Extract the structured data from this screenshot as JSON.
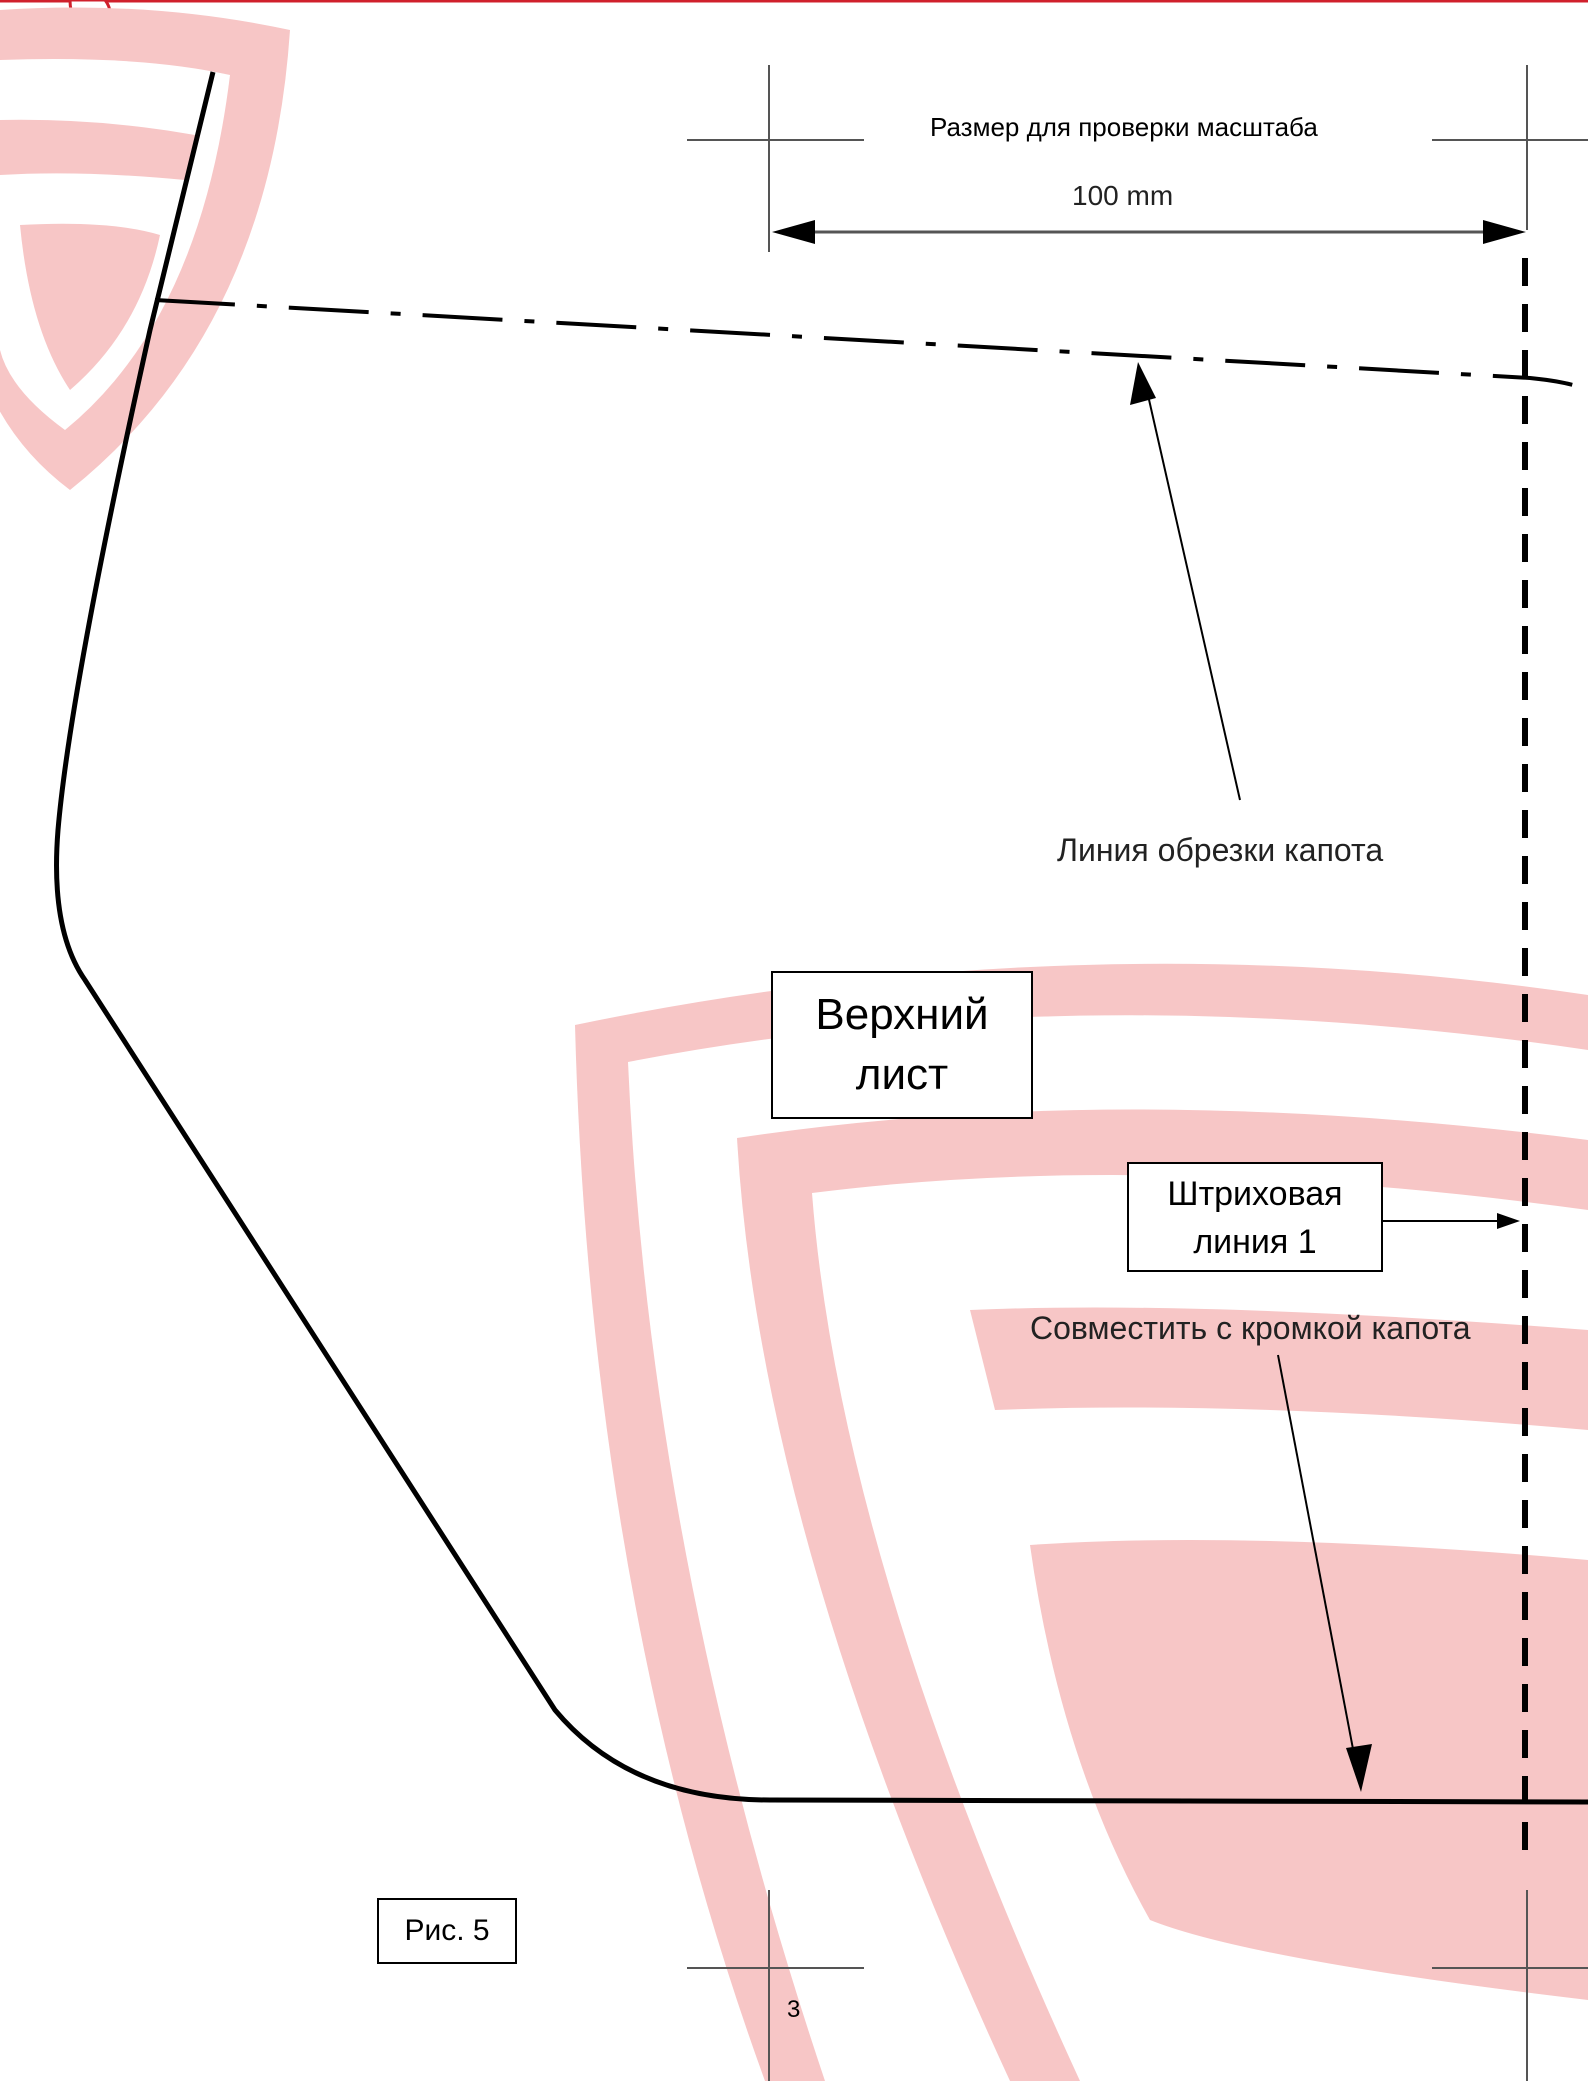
{
  "scale_check": {
    "caption": "Размер для проверки масштаба",
    "dimension": "100 mm"
  },
  "annotations": {
    "cut_line": "Линия обрезки капота",
    "align_edge": "Совместить с кромкой капота"
  },
  "boxes": {
    "top_sheet_line1": "Верхний",
    "top_sheet_line2": "лист",
    "dashed_line1_line1": "Штриховая",
    "dashed_line1_line2": "линия 1",
    "figure": "Рис. 5"
  },
  "page_number": "3",
  "colors": {
    "watermark": "#f7c6c6",
    "header_rule": "#d0202c",
    "ink": "#000000",
    "dim_line": "#555555"
  }
}
